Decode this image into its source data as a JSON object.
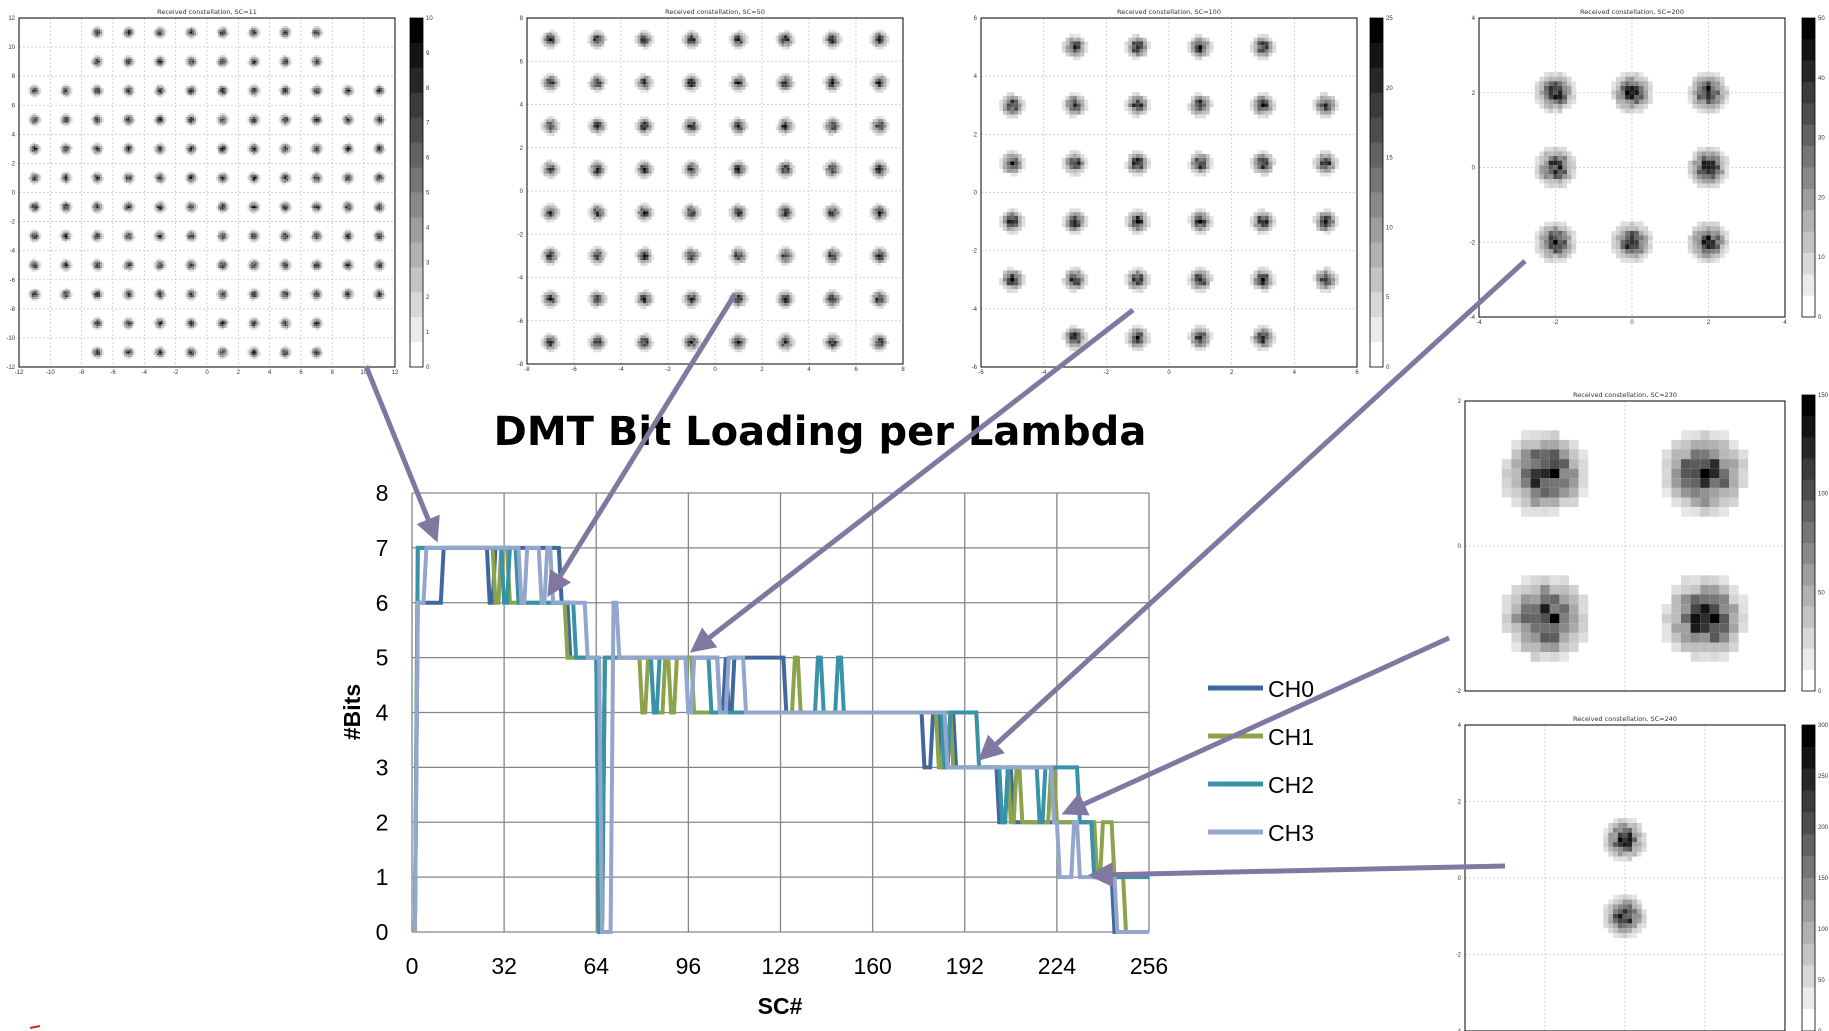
{
  "chart_data": [
    {
      "type": "line",
      "title": "DMT Bit Loading per Lambda",
      "xlabel": "SC#",
      "ylabel": "#Bits",
      "xlim": [
        0,
        256
      ],
      "ylim": [
        0,
        8
      ],
      "xticks": [
        0,
        32,
        64,
        96,
        128,
        160,
        192,
        224,
        256
      ],
      "yticks": [
        0,
        1,
        2,
        3,
        4,
        5,
        6,
        7,
        8
      ],
      "grid": true,
      "legend": "right",
      "series": [
        {
          "name": "CH0",
          "color": "#41689e",
          "x": [
            1,
            2,
            10,
            11,
            19,
            20,
            26,
            27,
            28,
            29,
            51,
            52,
            54,
            55,
            61,
            62,
            64,
            65,
            66,
            67,
            78,
            79,
            100,
            101,
            106,
            107,
            108,
            109,
            109,
            110,
            111,
            112,
            129,
            130,
            131,
            132,
            177,
            178,
            178,
            179,
            180,
            181,
            183,
            184,
            186,
            187,
            188,
            189,
            191,
            192,
            203,
            204,
            206,
            207,
            208,
            209,
            221,
            222,
            236,
            237,
            241,
            242,
            243,
            244,
            246,
            247,
            256
          ],
          "y": [
            0,
            6,
            6,
            7,
            7,
            7,
            7,
            6,
            6,
            7,
            7,
            6,
            6,
            5,
            5,
            5,
            5,
            0,
            0,
            5,
            5,
            5,
            5,
            5,
            5,
            4,
            4,
            5,
            5,
            4,
            4,
            5,
            5,
            4,
            4,
            4,
            4,
            3,
            3,
            3,
            3,
            4,
            4,
            3,
            3,
            4,
            4,
            3,
            3,
            3,
            3,
            2,
            2,
            3,
            3,
            2,
            2,
            2,
            2,
            1,
            1,
            1,
            1,
            0,
            0,
            0,
            0
          ]
        },
        {
          "name": "CH1",
          "color": "#8ba44b",
          "x": [
            1,
            2,
            28,
            29,
            30,
            31,
            33,
            34,
            35,
            36,
            53,
            54,
            55,
            56,
            64,
            65,
            66,
            67,
            79,
            80,
            81,
            82,
            83,
            84,
            87,
            88,
            89,
            90,
            91,
            92,
            97,
            98,
            99,
            100,
            132,
            133,
            134,
            135,
            182,
            183,
            184,
            185,
            187,
            188,
            189,
            190,
            207,
            208,
            209,
            210,
            211,
            212,
            221,
            222,
            223,
            224,
            225,
            226,
            237,
            238,
            239,
            240,
            243,
            244,
            247,
            248,
            256
          ],
          "y": [
            0,
            7,
            7,
            6,
            6,
            7,
            7,
            6,
            6,
            6,
            6,
            5,
            5,
            5,
            5,
            0,
            0,
            5,
            5,
            4,
            4,
            5,
            5,
            4,
            4,
            5,
            5,
            4,
            4,
            5,
            5,
            4,
            4,
            4,
            4,
            5,
            5,
            4,
            4,
            3,
            3,
            4,
            4,
            3,
            3,
            3,
            3,
            2,
            2,
            3,
            3,
            2,
            2,
            3,
            3,
            2,
            2,
            2,
            2,
            1,
            1,
            2,
            2,
            1,
            1,
            0,
            0
          ]
        },
        {
          "name": "CH2",
          "color": "#3892a8",
          "x": [
            1,
            2,
            31,
            32,
            33,
            34,
            36,
            37,
            56,
            57,
            59,
            60,
            64,
            65,
            66,
            67,
            83,
            84,
            85,
            86,
            95,
            96,
            97,
            98,
            103,
            104,
            105,
            106,
            140,
            141,
            142,
            143,
            147,
            148,
            149,
            150,
            184,
            185,
            186,
            187,
            196,
            197,
            198,
            199,
            204,
            205,
            206,
            207,
            217,
            218,
            219,
            220,
            231,
            232,
            233,
            234,
            236,
            237,
            240,
            241,
            256
          ],
          "y": [
            0,
            7,
            7,
            6,
            6,
            7,
            7,
            6,
            6,
            5,
            5,
            5,
            5,
            0,
            0,
            5,
            5,
            4,
            4,
            5,
            5,
            4,
            4,
            5,
            5,
            4,
            4,
            4,
            4,
            5,
            5,
            4,
            4,
            5,
            5,
            4,
            4,
            3,
            3,
            4,
            4,
            3,
            3,
            3,
            3,
            2,
            2,
            3,
            3,
            2,
            2,
            3,
            3,
            2,
            2,
            2,
            2,
            1,
            1,
            1,
            1
          ]
        },
        {
          "name": "CH3",
          "color": "#93a7cd",
          "x": [
            1,
            2,
            4,
            5,
            37,
            38,
            39,
            40,
            44,
            45,
            46,
            47,
            48,
            49,
            58,
            59,
            60,
            61,
            63,
            64,
            65,
            66,
            69,
            70,
            71,
            72,
            72,
            73,
            95,
            96,
            97,
            98,
            106,
            107,
            109,
            110,
            115,
            116,
            117,
            118,
            185,
            186,
            189,
            190,
            222,
            223,
            224,
            225,
            229,
            230,
            231,
            232,
            244,
            245,
            246,
            247,
            256
          ],
          "y": [
            0,
            6,
            6,
            7,
            7,
            6,
            6,
            7,
            7,
            6,
            6,
            7,
            7,
            6,
            6,
            6,
            6,
            5,
            5,
            5,
            5,
            0,
            0,
            6,
            6,
            5,
            5,
            5,
            5,
            4,
            4,
            5,
            5,
            4,
            4,
            5,
            5,
            4,
            4,
            4,
            4,
            3,
            3,
            3,
            3,
            2,
            2,
            1,
            1,
            2,
            2,
            1,
            1,
            0,
            0,
            0,
            0
          ]
        }
      ]
    },
    {
      "type": "heatmap",
      "title": "Received constellation, SC=11",
      "xlim": [
        -12,
        12
      ],
      "ylim": [
        -12,
        12
      ],
      "xticks": [
        -12,
        -10,
        -8,
        -6,
        -4,
        -2,
        0,
        2,
        4,
        6,
        8,
        10,
        12
      ],
      "yticks": [
        -12,
        -10,
        -8,
        -6,
        -4,
        -2,
        0,
        2,
        4,
        6,
        8,
        10,
        12
      ],
      "colorbar_ticks": [
        0,
        1,
        2,
        3,
        4,
        5,
        6,
        7,
        8,
        9,
        10
      ],
      "grid": true,
      "colormap": "gray-reversed",
      "constellation": "128-QAM",
      "points": {
        "levels": [
          -11,
          -9,
          -7,
          -5,
          -3,
          -1,
          1,
          3,
          5,
          7,
          9,
          11
        ],
        "exclude_corners": 2
      }
    },
    {
      "type": "heatmap",
      "title": "Received constellation, SC=50",
      "xlim": [
        -8,
        8
      ],
      "ylim": [
        -8,
        8
      ],
      "xticks": [
        -8,
        -6,
        -4,
        -2,
        0,
        2,
        4,
        6,
        8
      ],
      "yticks": [
        -8,
        -6,
        -4,
        -2,
        0,
        2,
        4,
        6,
        8
      ],
      "grid": true,
      "colormap": "gray-reversed",
      "constellation": "64-QAM",
      "points": {
        "levels": [
          -7,
          -5,
          -3,
          -1,
          1,
          3,
          5,
          7
        ],
        "exclude_corners": 0
      }
    },
    {
      "type": "heatmap",
      "title": "Received constellation, SC=100",
      "xlim": [
        -6,
        6
      ],
      "ylim": [
        -6,
        6
      ],
      "xticks": [
        -6,
        -4,
        -2,
        0,
        2,
        4,
        6
      ],
      "yticks": [
        -6,
        -4,
        -2,
        0,
        2,
        4,
        6
      ],
      "colorbar_ticks": [
        0,
        5,
        10,
        15,
        20,
        25
      ],
      "grid": true,
      "colormap": "gray-reversed",
      "constellation": "32-QAM",
      "points": {
        "levels": [
          -5,
          -3,
          -1,
          1,
          3,
          5
        ],
        "exclude_corners": 1
      }
    },
    {
      "type": "heatmap",
      "title": "Received constellation, SC=200",
      "xlim": [
        -4,
        4
      ],
      "ylim": [
        -4,
        4
      ],
      "xticks": [
        -4,
        -2,
        0,
        2,
        4
      ],
      "yticks": [
        -4,
        -2,
        0,
        2,
        4
      ],
      "colorbar_ticks": [
        0,
        10,
        20,
        30,
        40,
        50
      ],
      "grid": true,
      "colormap": "gray-reversed",
      "constellation": "8-QAM",
      "points": {
        "levels": [
          -2,
          0,
          2
        ],
        "exclude_center": true
      }
    },
    {
      "type": "heatmap",
      "title": "Received constellation, SC=230",
      "xlim": [
        -2,
        2
      ],
      "ylim": [
        -2,
        2
      ],
      "yticks": [
        -2,
        0,
        2
      ],
      "colorbar_ticks": [
        0,
        50,
        100,
        150
      ],
      "grid": true,
      "colormap": "gray-reversed",
      "constellation": "QPSK",
      "points": {
        "levels": [
          -1,
          1
        ]
      }
    },
    {
      "type": "heatmap",
      "title": "Received constellation, SC=240",
      "xlim": [
        -4,
        4
      ],
      "ylim": [
        -4,
        4
      ],
      "xticks": [
        -4,
        -2,
        0,
        2,
        4
      ],
      "yticks": [
        -4,
        -2,
        0,
        2,
        4
      ],
      "colorbar_ticks": [
        0,
        50,
        100,
        150,
        200,
        250,
        300
      ],
      "grid": true,
      "colormap": "gray-reversed",
      "constellation": "BPSK",
      "points": {
        "pairs": [
          [
            0,
            1
          ],
          [
            0,
            -1
          ]
        ]
      }
    }
  ],
  "arrows": [
    {
      "from_plot": "SC=11",
      "to_sc": 11,
      "to_bits": 7
    },
    {
      "from_plot": "SC=50",
      "to_sc": 50,
      "to_bits": 6
    },
    {
      "from_plot": "SC=100",
      "to_sc": 100,
      "to_bits": 5
    },
    {
      "from_plot": "SC=200",
      "to_sc": 200,
      "to_bits": 3
    },
    {
      "from_plot": "SC=230",
      "to_sc": 230,
      "to_bits": 2
    },
    {
      "from_plot": "SC=240",
      "to_sc": 240,
      "to_bits": 1
    }
  ],
  "colors": {
    "arrow": "#8078a0",
    "grid": "#808080"
  }
}
